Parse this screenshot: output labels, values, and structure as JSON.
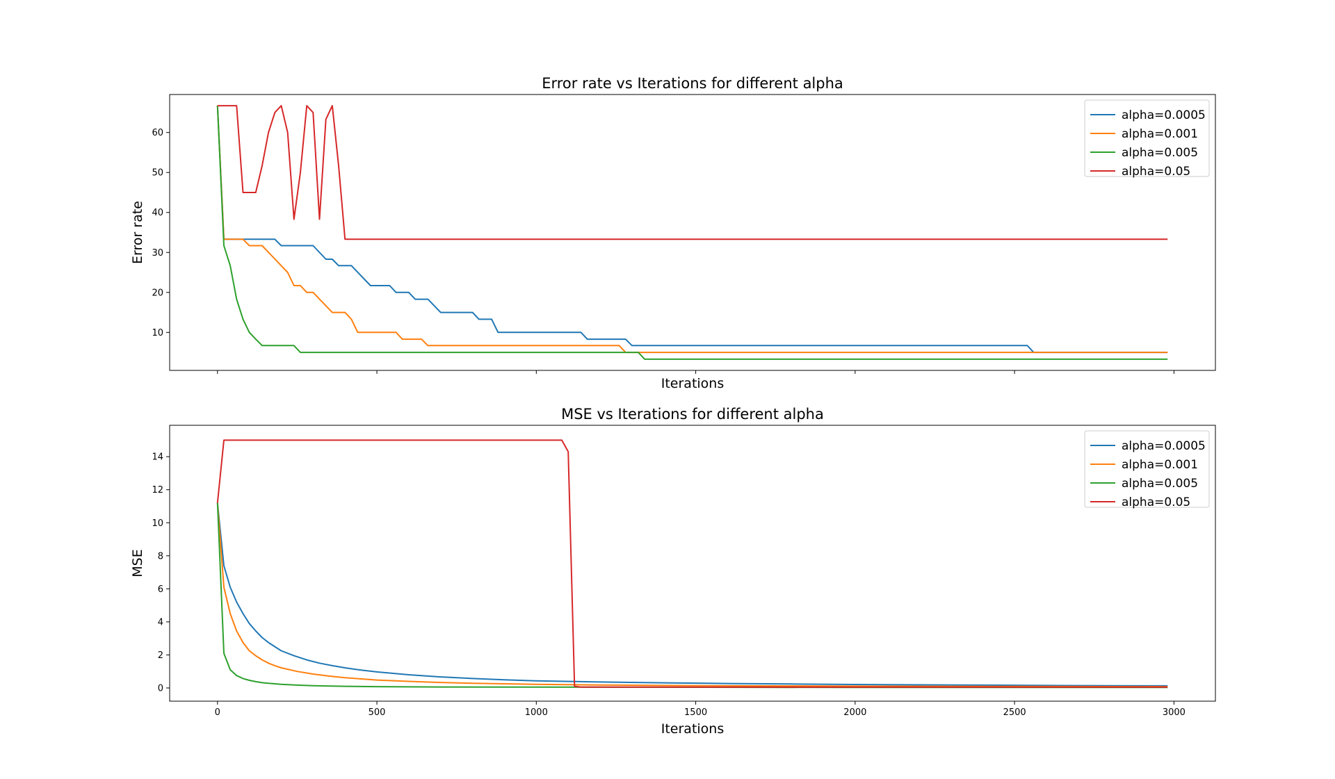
{
  "colors": {
    "alpha_0_0005": "#1f77b4",
    "alpha_0_001": "#ff7f0e",
    "alpha_0_005": "#2ca02c",
    "alpha_0_05": "#d62728"
  },
  "chart_data": [
    {
      "type": "line",
      "title": "Error rate vs Iterations for different alpha",
      "xlabel": "Iterations",
      "ylabel": "Error rate",
      "xlim": [
        -150,
        3130
      ],
      "ylim": [
        0.5,
        69.5
      ],
      "xticks": [
        0,
        500,
        1000,
        1500,
        2000,
        2500,
        3000
      ],
      "xtick_labels_visible": false,
      "yticks": [
        10,
        20,
        30,
        40,
        50,
        60
      ],
      "grid": false,
      "legend_position": "top-right",
      "series": [
        {
          "name": "alpha=0.0005",
          "color": "#1f77b4",
          "points": [
            [
              0,
              66.7
            ],
            [
              20,
              33.3
            ],
            [
              180,
              33.3
            ],
            [
              200,
              31.7
            ],
            [
              300,
              31.7
            ],
            [
              340,
              28.3
            ],
            [
              360,
              28.3
            ],
            [
              380,
              26.7
            ],
            [
              420,
              26.7
            ],
            [
              480,
              21.7
            ],
            [
              540,
              21.7
            ],
            [
              560,
              20
            ],
            [
              600,
              20
            ],
            [
              620,
              18.3
            ],
            [
              660,
              18.3
            ],
            [
              700,
              15
            ],
            [
              800,
              15
            ],
            [
              820,
              13.3
            ],
            [
              860,
              13.3
            ],
            [
              880,
              10
            ],
            [
              1140,
              10
            ],
            [
              1160,
              8.3
            ],
            [
              1280,
              8.3
            ],
            [
              1300,
              6.7
            ],
            [
              2540,
              6.7
            ],
            [
              2560,
              5
            ],
            [
              2980,
              5
            ]
          ]
        },
        {
          "name": "alpha=0.001",
          "color": "#ff7f0e",
          "points": [
            [
              0,
              66.7
            ],
            [
              20,
              33.3
            ],
            [
              80,
              33.3
            ],
            [
              100,
              31.7
            ],
            [
              140,
              31.7
            ],
            [
              220,
              25
            ],
            [
              240,
              21.7
            ],
            [
              260,
              21.7
            ],
            [
              280,
              20
            ],
            [
              300,
              20
            ],
            [
              360,
              15
            ],
            [
              400,
              15
            ],
            [
              420,
              13.3
            ],
            [
              440,
              10
            ],
            [
              560,
              10
            ],
            [
              580,
              8.3
            ],
            [
              640,
              8.3
            ],
            [
              660,
              6.7
            ],
            [
              1260,
              6.7
            ],
            [
              1280,
              5
            ],
            [
              2980,
              5
            ]
          ]
        },
        {
          "name": "alpha=0.005",
          "color": "#2ca02c",
          "points": [
            [
              0,
              66.7
            ],
            [
              20,
              31.7
            ],
            [
              40,
              26.7
            ],
            [
              60,
              18.3
            ],
            [
              80,
              13.3
            ],
            [
              100,
              10
            ],
            [
              120,
              8.3
            ],
            [
              140,
              6.7
            ],
            [
              240,
              6.7
            ],
            [
              260,
              5
            ],
            [
              1320,
              5
            ],
            [
              1340,
              3.3
            ],
            [
              2980,
              3.3
            ]
          ]
        },
        {
          "name": "alpha=0.05",
          "color": "#d62728",
          "points": [
            [
              0,
              66.7
            ],
            [
              60,
              66.7
            ],
            [
              80,
              45
            ],
            [
              120,
              45
            ],
            [
              140,
              51.7
            ],
            [
              160,
              60
            ],
            [
              180,
              65
            ],
            [
              200,
              66.7
            ],
            [
              220,
              60
            ],
            [
              240,
              38.3
            ],
            [
              260,
              50
            ],
            [
              280,
              66.7
            ],
            [
              300,
              65
            ],
            [
              320,
              38.3
            ],
            [
              340,
              63.3
            ],
            [
              360,
              66.7
            ],
            [
              380,
              51.7
            ],
            [
              400,
              33.3
            ],
            [
              2980,
              33.3
            ]
          ]
        }
      ]
    },
    {
      "type": "line",
      "title": "MSE vs Iterations for different alpha",
      "xlabel": "Iterations",
      "ylabel": "MSE",
      "xlim": [
        -150,
        3130
      ],
      "ylim": [
        -0.8,
        15.9
      ],
      "xticks": [
        0,
        500,
        1000,
        1500,
        2000,
        2500,
        3000
      ],
      "xtick_labels_visible": true,
      "yticks": [
        0,
        2,
        4,
        6,
        8,
        10,
        12,
        14
      ],
      "grid": false,
      "legend_position": "top-right",
      "series": [
        {
          "name": "alpha=0.0005",
          "color": "#1f77b4",
          "points": [
            [
              0,
              11.2
            ],
            [
              20,
              7.4
            ],
            [
              40,
              6.1
            ],
            [
              60,
              5.2
            ],
            [
              80,
              4.5
            ],
            [
              100,
              3.9
            ],
            [
              120,
              3.45
            ],
            [
              140,
              3.05
            ],
            [
              160,
              2.75
            ],
            [
              180,
              2.5
            ],
            [
              200,
              2.25
            ],
            [
              240,
              1.95
            ],
            [
              280,
              1.7
            ],
            [
              320,
              1.5
            ],
            [
              360,
              1.35
            ],
            [
              400,
              1.22
            ],
            [
              450,
              1.08
            ],
            [
              500,
              0.97
            ],
            [
              600,
              0.8
            ],
            [
              700,
              0.67
            ],
            [
              800,
              0.57
            ],
            [
              900,
              0.49
            ],
            [
              1000,
              0.43
            ],
            [
              1200,
              0.36
            ],
            [
              1400,
              0.31
            ],
            [
              1600,
              0.27
            ],
            [
              1800,
              0.24
            ],
            [
              2000,
              0.21
            ],
            [
              2200,
              0.19
            ],
            [
              2400,
              0.17
            ],
            [
              2600,
              0.15
            ],
            [
              2800,
              0.14
            ],
            [
              2980,
              0.13
            ]
          ]
        },
        {
          "name": "alpha=0.001",
          "color": "#ff7f0e",
          "points": [
            [
              0,
              11.2
            ],
            [
              20,
              6.1
            ],
            [
              40,
              4.5
            ],
            [
              60,
              3.45
            ],
            [
              80,
              2.75
            ],
            [
              100,
              2.25
            ],
            [
              120,
              1.95
            ],
            [
              140,
              1.7
            ],
            [
              160,
              1.5
            ],
            [
              180,
              1.35
            ],
            [
              200,
              1.22
            ],
            [
              250,
              1.0
            ],
            [
              300,
              0.84
            ],
            [
              350,
              0.72
            ],
            [
              400,
              0.62
            ],
            [
              500,
              0.48
            ],
            [
              600,
              0.4
            ],
            [
              700,
              0.33
            ],
            [
              800,
              0.28
            ],
            [
              1000,
              0.22
            ],
            [
              1200,
              0.18
            ],
            [
              1400,
              0.15
            ],
            [
              1600,
              0.13
            ],
            [
              2000,
              0.11
            ],
            [
              2500,
              0.09
            ],
            [
              2980,
              0.08
            ]
          ]
        },
        {
          "name": "alpha=0.005",
          "color": "#2ca02c",
          "points": [
            [
              0,
              11.2
            ],
            [
              20,
              2.1
            ],
            [
              40,
              1.1
            ],
            [
              60,
              0.75
            ],
            [
              80,
              0.57
            ],
            [
              100,
              0.46
            ],
            [
              120,
              0.38
            ],
            [
              140,
              0.32
            ],
            [
              160,
              0.28
            ],
            [
              200,
              0.22
            ],
            [
              250,
              0.17
            ],
            [
              300,
              0.14
            ],
            [
              400,
              0.1
            ],
            [
              500,
              0.08
            ],
            [
              700,
              0.06
            ],
            [
              1000,
              0.05
            ],
            [
              1500,
              0.04
            ],
            [
              2000,
              0.03
            ],
            [
              2980,
              0.03
            ]
          ]
        },
        {
          "name": "alpha=0.05",
          "color": "#d62728",
          "points": [
            [
              0,
              11.2
            ],
            [
              20,
              15
            ],
            [
              1080,
              15
            ],
            [
              1100,
              14.3
            ],
            [
              1120,
              0.1
            ],
            [
              1140,
              0.05
            ],
            [
              2980,
              0.05
            ]
          ]
        }
      ]
    }
  ]
}
